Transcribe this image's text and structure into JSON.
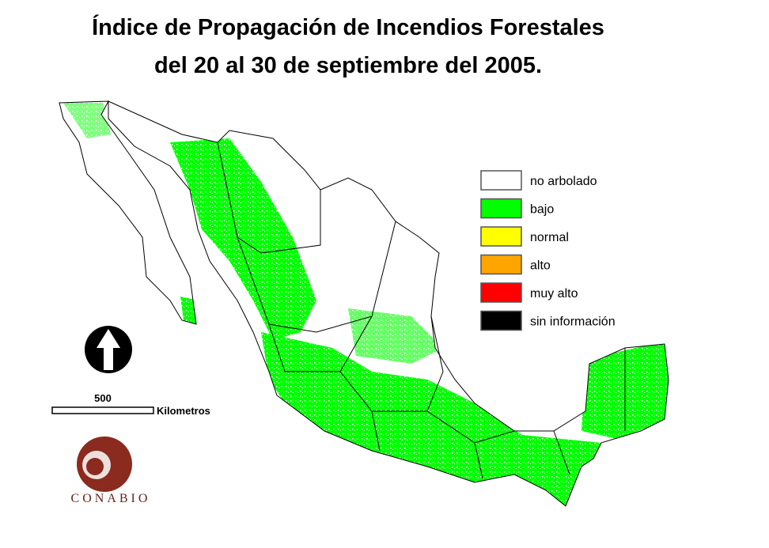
{
  "title": {
    "line1": "Índice de Propagación de Incendios Forestales",
    "line2": "del 20 al 30 de septiembre del 2005."
  },
  "legend": [
    {
      "label": "no arbolado",
      "color": "#ffffff"
    },
    {
      "label": "bajo",
      "color": "#00ff00"
    },
    {
      "label": "normal",
      "color": "#ffff00"
    },
    {
      "label": "alto",
      "color": "#ffa500"
    },
    {
      "label": "muy alto",
      "color": "#ff0000"
    },
    {
      "label": "sin información",
      "color": "#000000"
    }
  ],
  "scale_bar": {
    "value": 500,
    "unit": "Kilometros"
  },
  "logo": {
    "text": "CONABIO"
  }
}
